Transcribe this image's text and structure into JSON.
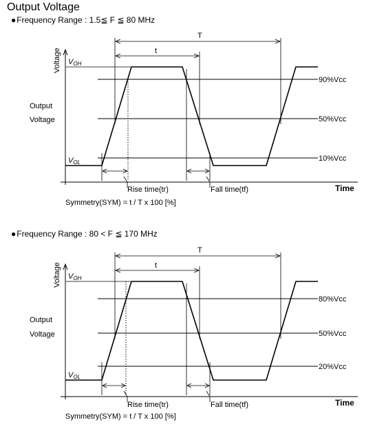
{
  "title": "Output Voltage",
  "diagrams": [
    {
      "range_label": "Frequency Range : 1.5≦ F ≦ 80 MHz",
      "bullet": "●",
      "y_axis_label": "Voltage",
      "output_label_line1": "Output",
      "output_label_line2": "Voltage",
      "voh": "V",
      "voh_sub": "OH",
      "vol": "V",
      "vol_sub": "OL",
      "levels": [
        "90%Vcc",
        "50%Vcc",
        "10%Vcc"
      ],
      "period_label": "T",
      "pulse_label": "t",
      "rise_label": "Rise time(tr)",
      "fall_label": "Fall time(tf)",
      "x_axis_label": "Time",
      "symmetry": "Symmetry(SYM) = t / T x 100 [%]"
    },
    {
      "range_label": "Frequency Range : 80 < F ≦ 170 MHz",
      "bullet": "●",
      "y_axis_label": "Voltage",
      "output_label_line1": "Output",
      "output_label_line2": "Voltage",
      "voh": "V",
      "voh_sub": "OH",
      "vol": "V",
      "vol_sub": "OL",
      "levels": [
        "80%Vcc",
        "50%Vcc",
        "20%Vcc"
      ],
      "period_label": "T",
      "pulse_label": "t",
      "rise_label": "Rise time(tr)",
      "fall_label": "Fall time(tf)",
      "x_axis_label": "Time",
      "symmetry": "Symmetry(SYM) = t / T x 100 [%]"
    }
  ]
}
